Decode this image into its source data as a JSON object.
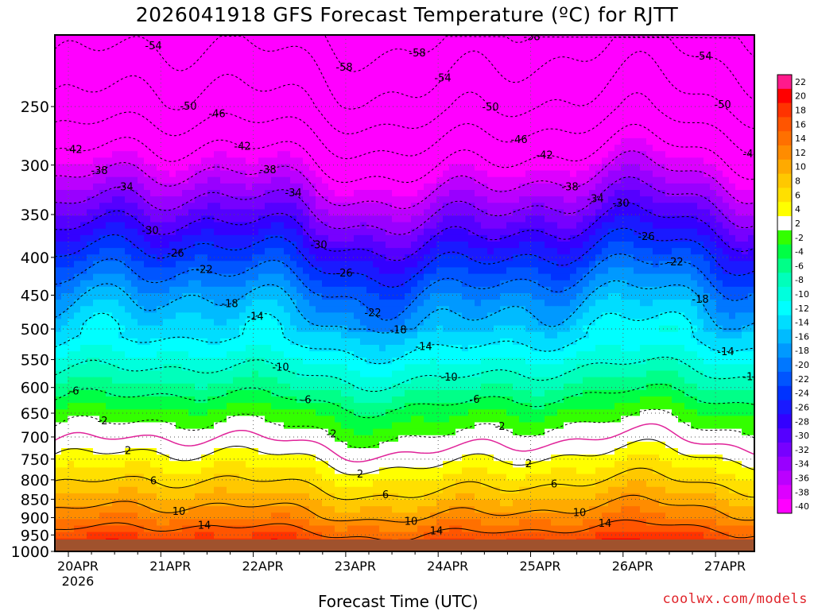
{
  "title": "2026041918 GFS Forecast Temperature (ºC) for RJTT",
  "xlabel": "Forecast Time (UTC)",
  "credit": "coolwx.com/models",
  "chart_data": {
    "type": "heatmap",
    "title": "2026041918 GFS Forecast Temperature (ºC) for RJTT",
    "xlabel": "Forecast Time (UTC)",
    "ylabel": "",
    "x_ticks": [
      "20APR",
      "21APR",
      "22APR",
      "23APR",
      "24APR",
      "25APR",
      "26APR",
      "27APR"
    ],
    "x_tick_sub": "2026",
    "y_ticks": [
      250,
      300,
      350,
      400,
      450,
      500,
      550,
      600,
      650,
      700,
      750,
      800,
      850,
      900,
      950,
      1000
    ],
    "xlim": [
      "20APR 00",
      "27APR 03"
    ],
    "ylim": [
      1000,
      200
    ],
    "y_scale": "log",
    "colorbar": {
      "levels": [
        22,
        20,
        18,
        16,
        14,
        12,
        10,
        8,
        6,
        4,
        2,
        -2,
        -4,
        -6,
        -8,
        -10,
        -12,
        -14,
        -16,
        -18,
        -20,
        -22,
        -24,
        -26,
        -28,
        -30,
        -32,
        -34,
        -36,
        -38,
        -40
      ],
      "colors": [
        "#ff1a8c",
        "#ff0000",
        "#ff3300",
        "#ff5500",
        "#ff7000",
        "#ff8c00",
        "#ffaa00",
        "#ffc800",
        "#ffe000",
        "#ffff00",
        "#ffffff",
        "#33ff00",
        "#00ff44",
        "#00ff88",
        "#00ffbb",
        "#00ffdd",
        "#00ffff",
        "#00ddff",
        "#00bbff",
        "#0099ff",
        "#0077ff",
        "#0055ff",
        "#0033ff",
        "#1a1aff",
        "#3300ff",
        "#5500ff",
        "#7700ff",
        "#9900ff",
        "#bb00ff",
        "#dd00ff",
        "#ff00ff"
      ]
    },
    "contours": {
      "levels_labelled": [
        -58,
        -54,
        -50,
        -46,
        -42,
        -38,
        -34,
        -30,
        -26,
        -22,
        -18,
        -14,
        -10,
        -6,
        -2,
        2,
        6,
        10,
        14
      ],
      "mean_profile": [
        {
          "pressure": 1000,
          "temp": 18
        },
        {
          "pressure": 950,
          "temp": 15
        },
        {
          "pressure": 900,
          "temp": 11
        },
        {
          "pressure": 850,
          "temp": 8
        },
        {
          "pressure": 800,
          "temp": 5
        },
        {
          "pressure": 750,
          "temp": 2
        },
        {
          "pressure": 700,
          "temp": -1
        },
        {
          "pressure": 650,
          "temp": -4
        },
        {
          "pressure": 600,
          "temp": -8
        },
        {
          "pressure": 550,
          "temp": -12
        },
        {
          "pressure": 500,
          "temp": -16
        },
        {
          "pressure": 450,
          "temp": -20
        },
        {
          "pressure": 400,
          "temp": -26
        },
        {
          "pressure": 350,
          "temp": -33
        },
        {
          "pressure": 300,
          "temp": -41
        },
        {
          "pressure": 250,
          "temp": -50
        },
        {
          "pressure": 200,
          "temp": -57
        }
      ]
    }
  }
}
